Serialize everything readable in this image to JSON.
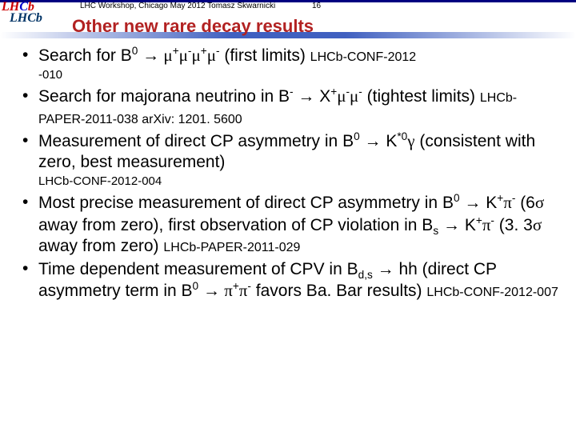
{
  "header": {
    "text": "LHC Workshop, Chicago May 2012 Tomasz Skwarnicki",
    "page": "16"
  },
  "logo": {
    "text": "LHCb",
    "shadow": "LHCb"
  },
  "title": "Other new rare decay results",
  "bullets": {
    "b1_a": "Search for B",
    "b1_b": " (first limits) ",
    "b1_ref": "LHCb-CONF-2012",
    "b1_sub": "-010",
    "b2_a": "Search for majorana neutrino in B",
    "b2_b": " X",
    "b2_c": " (tightest limits) ",
    "b2_ref": "LHCb-PAPER-2011-038 arXiv: 1201. 5600",
    "b3_a": "Measurement of direct CP asymmetry in B",
    "b3_b": "K",
    "b3_c": " (consistent with zero, best measurement)",
    "b3_ref": "LHCb-CONF-2012-004",
    "b4_a": "Most precise measurement of direct CP asymmetry in B",
    "b4_b": " K",
    "b4_c": " (6",
    "b4_d": " away from zero), first observation of CP violation in B",
    "b4_e": " K",
    "b4_f": " (3. 3",
    "b4_g": " away from zero) ",
    "b4_ref": "LHCb-PAPER-2011-029",
    "b5_a": "Time dependent measurement of CPV in B",
    "b5_b": " hh (direct CP asymmetry term in B",
    "b5_c": " favors Ba. Bar results) ",
    "b5_ref": "LHCb-CONF-2012-007"
  }
}
